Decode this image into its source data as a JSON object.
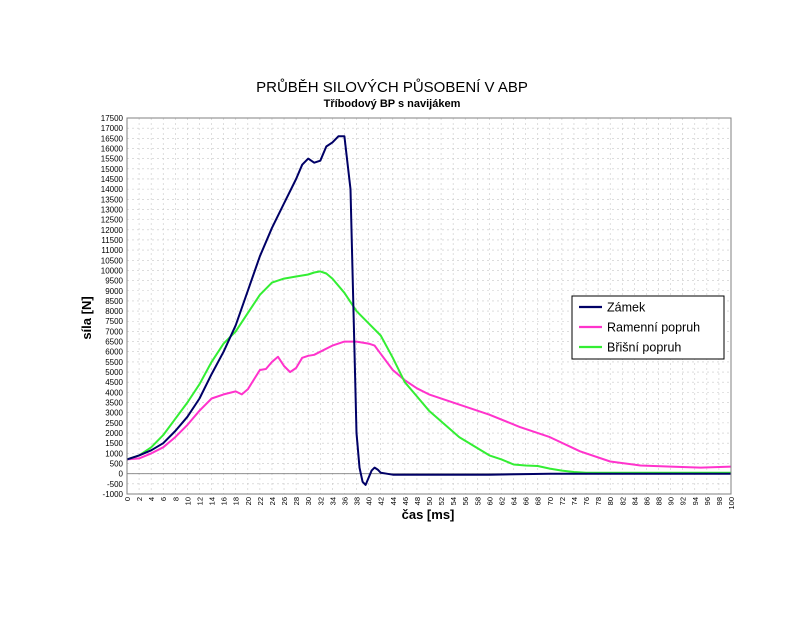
{
  "chart_data": {
    "type": "line",
    "title": "PRŮBĚH SILOVÝCH PŮSOBENÍ V ABP",
    "subtitle": "Tříbodový BP s navijákem",
    "xlabel": "čas [ms]",
    "ylabel": "síla [N]",
    "xlim": [
      0,
      100
    ],
    "ylim": [
      -1000,
      17500
    ],
    "y_ticks": [
      -1000,
      -500,
      0,
      500,
      1000,
      1500,
      2000,
      2500,
      3000,
      3500,
      4000,
      4500,
      5000,
      5500,
      6000,
      6500,
      7000,
      7500,
      8000,
      8500,
      9000,
      9500,
      10000,
      10500,
      11000,
      11500,
      12000,
      12500,
      13000,
      13500,
      14000,
      14500,
      15000,
      15500,
      16000,
      16500,
      17000,
      17500
    ],
    "x_ticks": [
      0,
      2,
      4,
      6,
      8,
      10,
      12,
      14,
      16,
      18,
      20,
      22,
      24,
      26,
      28,
      30,
      32,
      34,
      36,
      38,
      40,
      42,
      44,
      46,
      48,
      50,
      52,
      54,
      56,
      58,
      60,
      62,
      64,
      66,
      68,
      70,
      72,
      74,
      76,
      78,
      80,
      82,
      84,
      86,
      88,
      90,
      92,
      94,
      96,
      98,
      100
    ],
    "grid": true,
    "legend_position": "right",
    "series": [
      {
        "name": "Zámek",
        "color": "#000066",
        "x": [
          0,
          2,
          4,
          6,
          8,
          10,
          12,
          14,
          16,
          18,
          20,
          22,
          24,
          26,
          28,
          29,
          30,
          31,
          32,
          33,
          34,
          35,
          36,
          37,
          37.5,
          38,
          38.5,
          39,
          39.5,
          40,
          40.5,
          41,
          41.5,
          42,
          43,
          44,
          46,
          50,
          60,
          70,
          80,
          90,
          100
        ],
        "y": [
          700,
          900,
          1150,
          1500,
          2100,
          2800,
          3700,
          4900,
          6000,
          7300,
          9000,
          10700,
          12100,
          13300,
          14500,
          15200,
          15500,
          15300,
          15400,
          16100,
          16300,
          16600,
          16600,
          14000,
          8000,
          2000,
          300,
          -400,
          -550,
          -200,
          150,
          300,
          200,
          50,
          0,
          -50,
          -50,
          -50,
          -50,
          0,
          0,
          0,
          0
        ]
      },
      {
        "name": "Ramenní popruh",
        "color": "#ff33cc",
        "x": [
          0,
          2,
          4,
          6,
          8,
          10,
          12,
          14,
          16,
          18,
          19,
          20,
          22,
          23,
          24,
          25,
          26,
          27,
          28,
          29,
          30,
          31,
          32,
          34,
          36,
          37,
          38,
          40,
          41,
          42,
          44,
          46,
          48,
          50,
          55,
          60,
          65,
          70,
          75,
          80,
          85,
          90,
          95,
          100
        ],
        "y": [
          700,
          750,
          1000,
          1300,
          1800,
          2400,
          3100,
          3700,
          3900,
          4050,
          3900,
          4150,
          5100,
          5150,
          5500,
          5750,
          5300,
          5000,
          5200,
          5700,
          5800,
          5850,
          6000,
          6300,
          6500,
          6500,
          6500,
          6400,
          6300,
          5900,
          5100,
          4600,
          4200,
          3900,
          3400,
          2900,
          2300,
          1800,
          1100,
          600,
          400,
          350,
          300,
          350
        ]
      },
      {
        "name": "Břišní popruh",
        "color": "#33ee33",
        "x": [
          0,
          2,
          4,
          6,
          8,
          10,
          12,
          14,
          16,
          18,
          20,
          22,
          24,
          26,
          28,
          30,
          31,
          32,
          33,
          34,
          36,
          38,
          40,
          42,
          44,
          46,
          48,
          50,
          55,
          60,
          62,
          64,
          66,
          68,
          70,
          72,
          74,
          76,
          80,
          90,
          100
        ],
        "y": [
          700,
          900,
          1300,
          1900,
          2700,
          3500,
          4400,
          5500,
          6400,
          7000,
          7900,
          8800,
          9400,
          9600,
          9700,
          9800,
          9900,
          9950,
          9850,
          9600,
          8900,
          8000,
          7400,
          6800,
          5700,
          4500,
          3800,
          3100,
          1800,
          900,
          700,
          450,
          400,
          380,
          250,
          150,
          80,
          50,
          50,
          50,
          50
        ]
      }
    ]
  }
}
